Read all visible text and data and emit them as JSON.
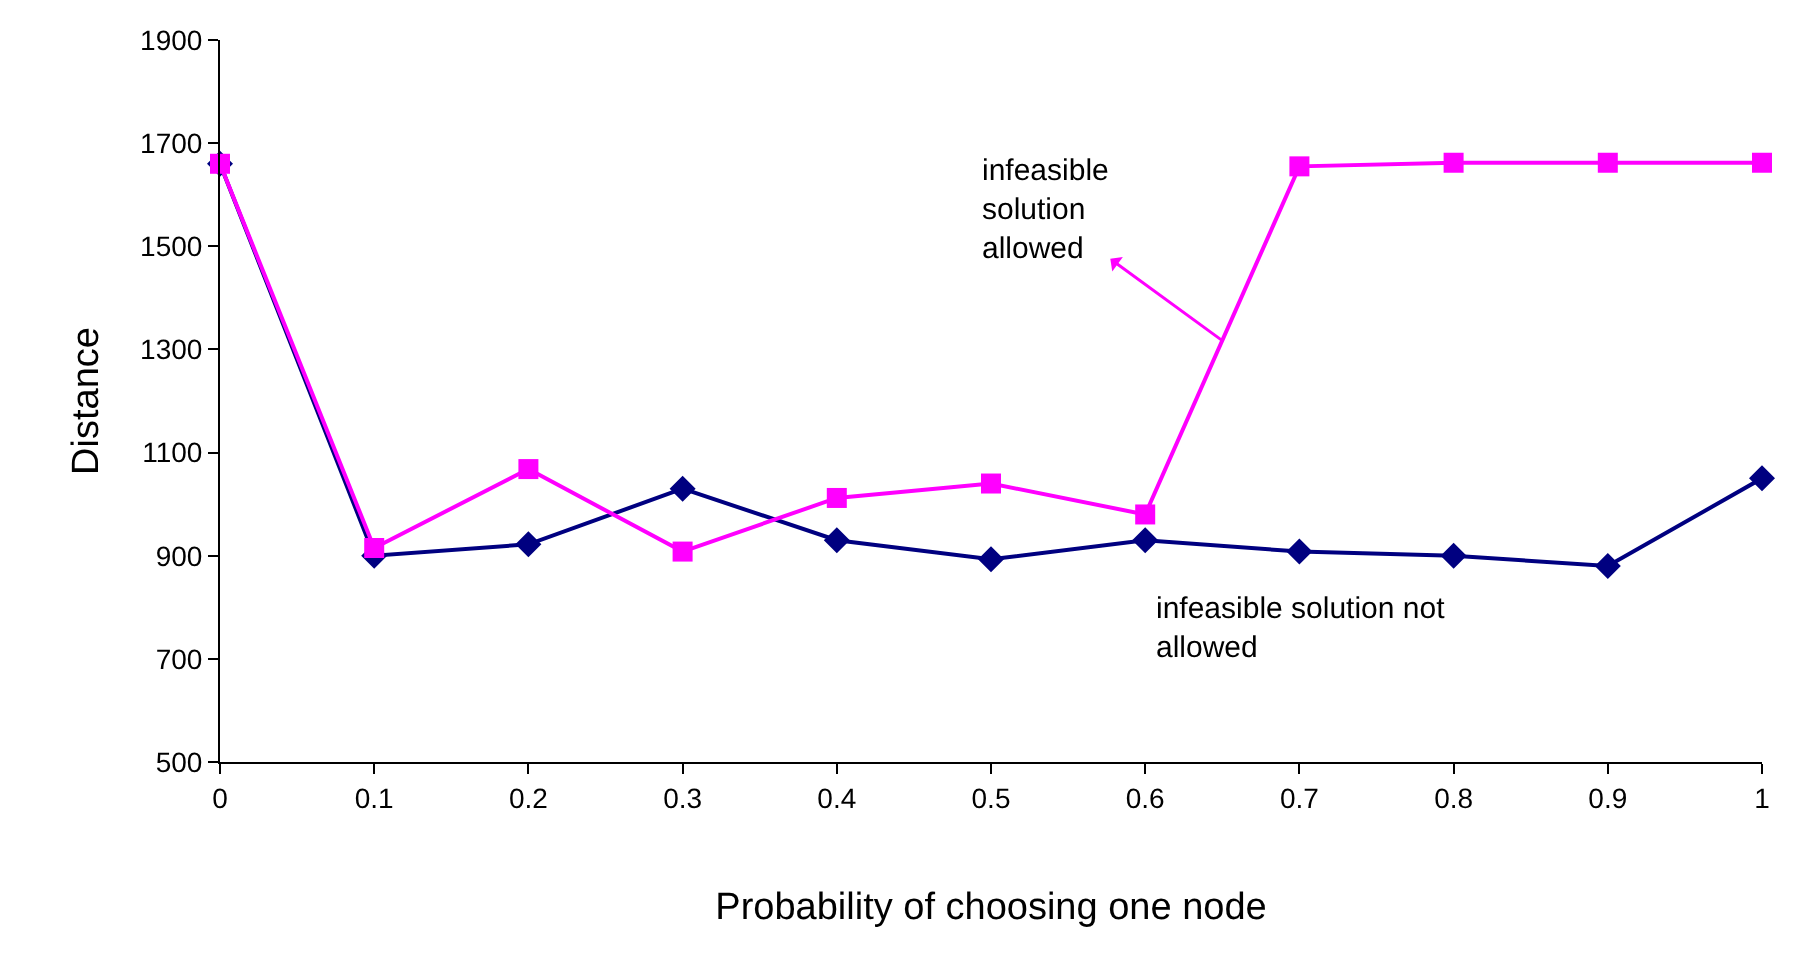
{
  "chart_data": {
    "type": "line",
    "xlabel": "Probability of choosing one node",
    "ylabel": "Distance",
    "x": [
      0,
      0.1,
      0.2,
      0.3,
      0.4,
      0.5,
      0.6,
      0.7,
      0.8,
      0.9,
      1
    ],
    "xlim": [
      0,
      1
    ],
    "xticks": [
      0,
      0.1,
      0.2,
      0.3,
      0.4,
      0.5,
      0.6,
      0.7,
      0.8,
      0.9,
      1
    ],
    "ylim": [
      500,
      1900
    ],
    "yticks": [
      500,
      700,
      900,
      1100,
      1300,
      1500,
      1700,
      1900
    ],
    "legend": false,
    "line_style": "solid",
    "series": [
      {
        "color": "#000080",
        "marker": "diamond",
        "values": [
          1660,
          900,
          922,
          1030,
          930,
          893,
          930,
          908,
          900,
          880,
          1050
        ]
      },
      {
        "color": "#ff00ff",
        "marker": "square",
        "values": [
          1660,
          915,
          1068,
          908,
          1012,
          1040,
          980,
          1655,
          1662,
          1662,
          1662
        ]
      }
    ],
    "annotations": [
      {
        "text": "infeasible\nsolution\nallowed",
        "x": 0.65,
        "y": 1317
      },
      "infeasible solution not\nallowed"
    ]
  }
}
